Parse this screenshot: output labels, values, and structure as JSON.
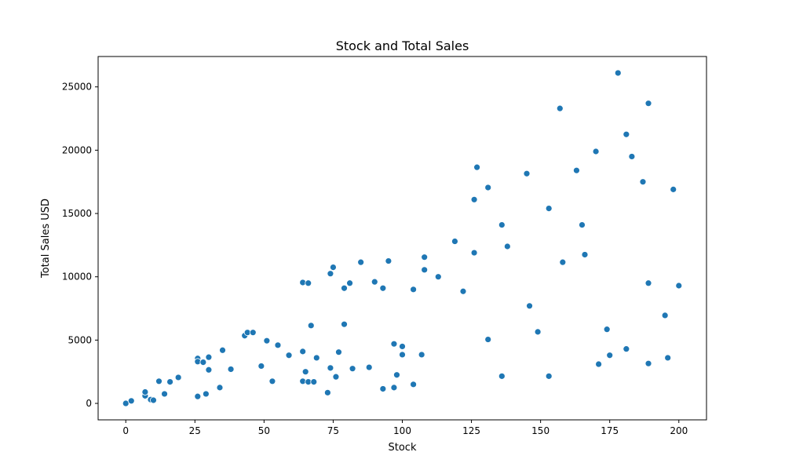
{
  "chart_data": {
    "type": "scatter",
    "title": "Stock and Total Sales",
    "xlabel": "Stock",
    "ylabel": "Total Sales USD",
    "xlim": [
      -10,
      210
    ],
    "ylim": [
      -1300,
      27400
    ],
    "xticks": [
      0,
      25,
      50,
      75,
      100,
      125,
      150,
      175,
      200
    ],
    "yticks": [
      0,
      5000,
      10000,
      15000,
      20000,
      25000
    ],
    "xtick_labels": [
      "0",
      "25",
      "50",
      "75",
      "100",
      "125",
      "150",
      "175",
      "200"
    ],
    "ytick_labels": [
      "0",
      "5000",
      "10000",
      "15000",
      "20000",
      "25000"
    ],
    "grid": false,
    "legend": "none",
    "marker_color": "#1f77b4",
    "points": [
      {
        "x": 0,
        "y": 0
      },
      {
        "x": 2,
        "y": 200
      },
      {
        "x": 7,
        "y": 600
      },
      {
        "x": 7,
        "y": 900
      },
      {
        "x": 9,
        "y": 300
      },
      {
        "x": 10,
        "y": 250
      },
      {
        "x": 12,
        "y": 1750
      },
      {
        "x": 14,
        "y": 750
      },
      {
        "x": 16,
        "y": 1700
      },
      {
        "x": 19,
        "y": 2050
      },
      {
        "x": 26,
        "y": 3550
      },
      {
        "x": 26,
        "y": 3300
      },
      {
        "x": 26,
        "y": 550
      },
      {
        "x": 28,
        "y": 3250
      },
      {
        "x": 29,
        "y": 750
      },
      {
        "x": 30,
        "y": 3650
      },
      {
        "x": 30,
        "y": 2650
      },
      {
        "x": 34,
        "y": 1250
      },
      {
        "x": 35,
        "y": 4200
      },
      {
        "x": 38,
        "y": 2700
      },
      {
        "x": 43,
        "y": 5350
      },
      {
        "x": 44,
        "y": 5600
      },
      {
        "x": 46,
        "y": 5600
      },
      {
        "x": 49,
        "y": 2950
      },
      {
        "x": 51,
        "y": 4950
      },
      {
        "x": 53,
        "y": 1750
      },
      {
        "x": 55,
        "y": 4600
      },
      {
        "x": 59,
        "y": 3800
      },
      {
        "x": 64,
        "y": 9550
      },
      {
        "x": 64,
        "y": 4100
      },
      {
        "x": 64,
        "y": 1750
      },
      {
        "x": 65,
        "y": 2500
      },
      {
        "x": 66,
        "y": 9500
      },
      {
        "x": 66,
        "y": 1700
      },
      {
        "x": 67,
        "y": 6150
      },
      {
        "x": 68,
        "y": 1700
      },
      {
        "x": 69,
        "y": 3600
      },
      {
        "x": 73,
        "y": 850
      },
      {
        "x": 74,
        "y": 2800
      },
      {
        "x": 74,
        "y": 10250
      },
      {
        "x": 75,
        "y": 10750
      },
      {
        "x": 76,
        "y": 2100
      },
      {
        "x": 77,
        "y": 4050
      },
      {
        "x": 79,
        "y": 6250
      },
      {
        "x": 79,
        "y": 9100
      },
      {
        "x": 81,
        "y": 9500
      },
      {
        "x": 82,
        "y": 2750
      },
      {
        "x": 85,
        "y": 11150
      },
      {
        "x": 88,
        "y": 2850
      },
      {
        "x": 90,
        "y": 9600
      },
      {
        "x": 93,
        "y": 9100
      },
      {
        "x": 93,
        "y": 1150
      },
      {
        "x": 95,
        "y": 11250
      },
      {
        "x": 97,
        "y": 4700
      },
      {
        "x": 97,
        "y": 1250
      },
      {
        "x": 98,
        "y": 2250
      },
      {
        "x": 100,
        "y": 4500
      },
      {
        "x": 100,
        "y": 3850
      },
      {
        "x": 104,
        "y": 9000
      },
      {
        "x": 104,
        "y": 1500
      },
      {
        "x": 107,
        "y": 3850
      },
      {
        "x": 108,
        "y": 11550
      },
      {
        "x": 108,
        "y": 10550
      },
      {
        "x": 113,
        "y": 10000
      },
      {
        "x": 119,
        "y": 12800
      },
      {
        "x": 122,
        "y": 8850
      },
      {
        "x": 126,
        "y": 16100
      },
      {
        "x": 126,
        "y": 11900
      },
      {
        "x": 127,
        "y": 18650
      },
      {
        "x": 131,
        "y": 17050
      },
      {
        "x": 131,
        "y": 5050
      },
      {
        "x": 136,
        "y": 14100
      },
      {
        "x": 136,
        "y": 2150
      },
      {
        "x": 138,
        "y": 12400
      },
      {
        "x": 145,
        "y": 18150
      },
      {
        "x": 146,
        "y": 7700
      },
      {
        "x": 149,
        "y": 5650
      },
      {
        "x": 153,
        "y": 15400
      },
      {
        "x": 153,
        "y": 2150
      },
      {
        "x": 157,
        "y": 23300
      },
      {
        "x": 158,
        "y": 11150
      },
      {
        "x": 163,
        "y": 18400
      },
      {
        "x": 165,
        "y": 14100
      },
      {
        "x": 166,
        "y": 11750
      },
      {
        "x": 170,
        "y": 19900
      },
      {
        "x": 171,
        "y": 3100
      },
      {
        "x": 174,
        "y": 5850
      },
      {
        "x": 175,
        "y": 3800
      },
      {
        "x": 178,
        "y": 26100
      },
      {
        "x": 181,
        "y": 21250
      },
      {
        "x": 181,
        "y": 4300
      },
      {
        "x": 183,
        "y": 19500
      },
      {
        "x": 187,
        "y": 17500
      },
      {
        "x": 189,
        "y": 23700
      },
      {
        "x": 189,
        "y": 9500
      },
      {
        "x": 189,
        "y": 3150
      },
      {
        "x": 195,
        "y": 6950
      },
      {
        "x": 196,
        "y": 3600
      },
      {
        "x": 198,
        "y": 16900
      },
      {
        "x": 200,
        "y": 9300
      }
    ]
  }
}
